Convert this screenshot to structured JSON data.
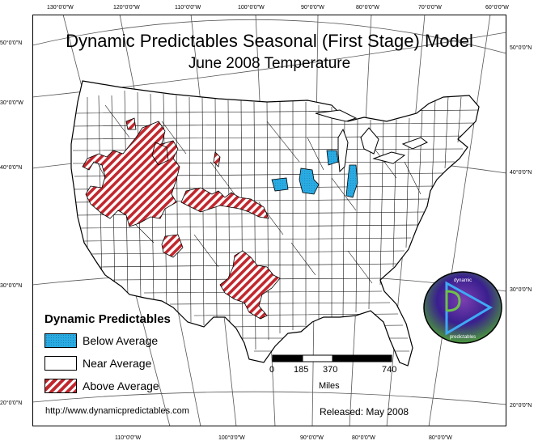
{
  "title": "Dynamic Predictables Seasonal (First Stage) Model",
  "subtitle": "June 2008 Temperature",
  "legend": {
    "title": "Dynamic Predictables",
    "items": [
      {
        "label": "Below Average",
        "color": "#29abe2"
      },
      {
        "label": "Near Average",
        "color": "#ffffff"
      },
      {
        "label": "Above Average",
        "color": "#c1272d"
      }
    ]
  },
  "scale": {
    "ticks": [
      "0",
      "185",
      "370",
      "740"
    ],
    "unit": "Miles"
  },
  "url": "http://www.dynamicpredictables.com",
  "released": "Released: May 2008",
  "logo": {
    "top_text": "dynamic",
    "bottom_text": "predictables",
    "colors": [
      "#3a1f8f",
      "#7b3fb0",
      "#4a9a3a"
    ]
  },
  "graticule": {
    "top": [
      "130°0'0\"W",
      "120°0'0\"W",
      "110°0'0\"W",
      "100°0'0\"W",
      "90°0'0\"W",
      "80°0'0\"W",
      "70°0'0\"W",
      "60°0'0\"W"
    ],
    "bottom": [
      "110°0'0\"W",
      "100°0'0\"W",
      "90°0'0\"W",
      "80°0'0\"W",
      "80°0'0\"W"
    ],
    "left": [
      "50°0'0\"N",
      "30°0'0\"W",
      "40°0'0\"N",
      "30°0'0\"N",
      "20°0'0\"N"
    ],
    "right": [
      "50°0'0\"N",
      "40°0'0\"N",
      "30°0'0\"N",
      "20°0'0\"N"
    ]
  }
}
